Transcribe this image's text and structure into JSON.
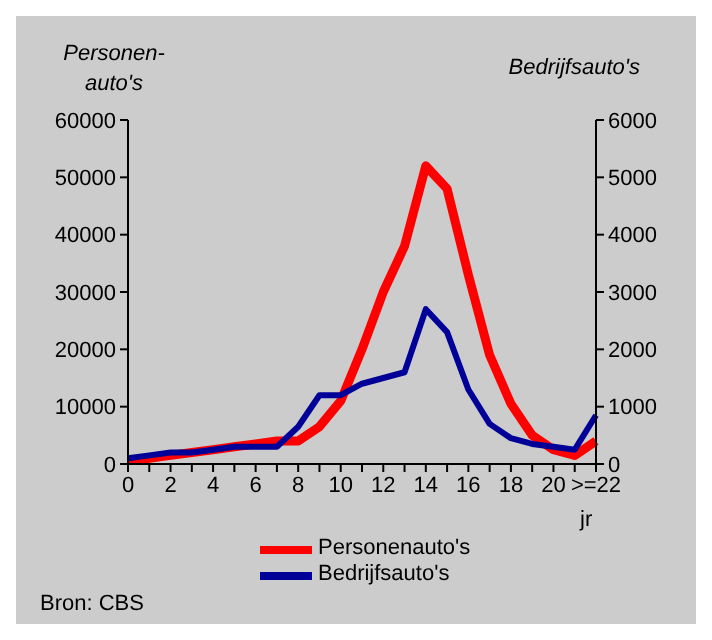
{
  "chart_data": {
    "type": "line",
    "ylabel": "Personen-auto's",
    "y2label": "Bedrijfsauto's",
    "xlabel": "jr",
    "categories": [
      "0",
      null,
      "2",
      null,
      "4",
      null,
      "6",
      null,
      "8",
      null,
      "10",
      null,
      "12",
      null,
      "14",
      null,
      "16",
      null,
      "18",
      null,
      "20",
      null,
      ">=22"
    ],
    "series": [
      {
        "name": "Personenauto's",
        "color": "#ff0000",
        "values": [
          0,
          1000,
          1500,
          2000,
          2500,
          3000,
          3500,
          4000,
          4000,
          6500,
          11000,
          20000,
          30000,
          38000,
          52000,
          48000,
          33000,
          19000,
          10500,
          5000,
          2500,
          1500,
          4000
        ]
      },
      {
        "name": "Bedrijfsauto's",
        "color": "#000099",
        "axis": "y2",
        "values": [
          100,
          150,
          200,
          200,
          250,
          300,
          300,
          300,
          650,
          1200,
          1200,
          1400,
          1500,
          1600,
          2700,
          2300,
          1300,
          700,
          450,
          350,
          300,
          250,
          850
        ]
      }
    ],
    "ylim": [
      0,
      60000
    ],
    "yticks": [
      0,
      10000,
      20000,
      30000,
      40000,
      50000,
      60000
    ],
    "y2lim": [
      0,
      6000
    ],
    "y2ticks": [
      0,
      1000,
      2000,
      3000,
      4000,
      5000,
      6000
    ],
    "grid": false,
    "legend": "bottom",
    "annotations": [
      "Bron: CBS"
    ]
  }
}
